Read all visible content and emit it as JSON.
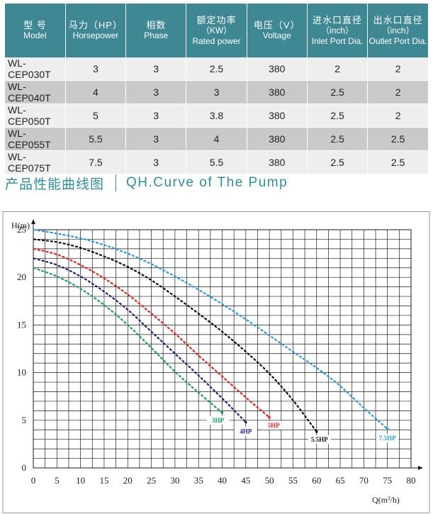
{
  "table": {
    "headers": [
      {
        "cn": "型 号",
        "en": [
          "Model"
        ]
      },
      {
        "cn": "马力（HP）",
        "en": [
          "Horsepower"
        ]
      },
      {
        "cn": "相数",
        "en": [
          "Phase"
        ]
      },
      {
        "cn": "额定功率",
        "en": [
          "（KW）",
          "Rated power"
        ]
      },
      {
        "cn": "电压（V）",
        "en": [
          "Voltage"
        ]
      },
      {
        "cn": "进水口直径",
        "en": [
          "（inch）",
          "Inlet Port Dia."
        ]
      },
      {
        "cn": "出水口直径",
        "en": [
          "（inch）",
          "Outlet Port Dia."
        ]
      }
    ],
    "rows": [
      [
        "WL-CEP030T",
        "3",
        "3",
        "2.5",
        "380",
        "2",
        "2"
      ],
      [
        "WL-CEP040T",
        "4",
        "3",
        "3",
        "380",
        "2.5",
        "2"
      ],
      [
        "WL-CEP050T",
        "5",
        "3",
        "3.8",
        "380",
        "2.5",
        "2"
      ],
      [
        "WL-CEP055T",
        "5.5",
        "3",
        "4",
        "380",
        "2.5",
        "2.5"
      ],
      [
        "WL-CEP075T",
        "7.5",
        "3",
        "5.5",
        "380",
        "2.5",
        "2.5"
      ]
    ]
  },
  "section": {
    "title_cn": "产品性能曲线图",
    "title_en": "QH.Curve of The Pump"
  },
  "chart_data": {
    "type": "line",
    "title": "",
    "xlabel": "Q(m³/h)",
    "ylabel": "H(m)",
    "xlim": [
      0,
      80
    ],
    "ylim": [
      0,
      25
    ],
    "x_ticks": [
      0,
      5,
      10,
      15,
      20,
      25,
      30,
      35,
      40,
      45,
      50,
      55,
      60,
      65,
      70,
      75,
      80
    ],
    "y_ticks": [
      0,
      5,
      10,
      15,
      20,
      25
    ],
    "grid": true,
    "colors": {
      "grid": "#1a1a1a",
      "axis": "#1a1a1a",
      "tick_text": "#222222",
      "frame": "#9a9a9a"
    },
    "series": [
      {
        "name": "3HP",
        "color": "#17a05a",
        "x": [
          0,
          5,
          10,
          15,
          20,
          25,
          30,
          35,
          40
        ],
        "y": [
          21,
          20.1,
          18.8,
          17.1,
          15,
          12.6,
          10.1,
          7.9,
          5.8
        ]
      },
      {
        "name": "4HP",
        "color": "#2b1d7a",
        "x": [
          0,
          5,
          10,
          15,
          20,
          25,
          30,
          35,
          40,
          45
        ],
        "y": [
          22,
          21.3,
          20.1,
          18.5,
          16.6,
          14.3,
          12,
          9.7,
          7.3,
          4.8
        ]
      },
      {
        "name": "5HP",
        "color": "#e8231d",
        "x": [
          0,
          5,
          10,
          15,
          20,
          25,
          30,
          35,
          40,
          45,
          50
        ],
        "y": [
          23,
          22.4,
          21.3,
          19.9,
          18.2,
          16.2,
          14.1,
          11.8,
          9.6,
          7.4,
          5.3
        ]
      },
      {
        "name": "5.5HP",
        "color": "#111111",
        "x": [
          0,
          5,
          10,
          15,
          20,
          25,
          30,
          35,
          40,
          45,
          50,
          55,
          60
        ],
        "y": [
          24,
          23.7,
          23.1,
          22.2,
          21.1,
          19.7,
          18,
          16.2,
          14.3,
          12.2,
          9.9,
          7.1,
          3.8
        ]
      },
      {
        "name": "7.5HP",
        "color": "#2b9ad8",
        "x": [
          0,
          5,
          10,
          15,
          20,
          25,
          30,
          35,
          40,
          45,
          50,
          55,
          60,
          65,
          70,
          75
        ],
        "y": [
          25,
          24.6,
          24.1,
          23.4,
          22.5,
          21.4,
          20.1,
          18.7,
          17.2,
          15.6,
          13.9,
          12.2,
          10.5,
          8.6,
          6.3,
          4.1
        ]
      }
    ]
  }
}
